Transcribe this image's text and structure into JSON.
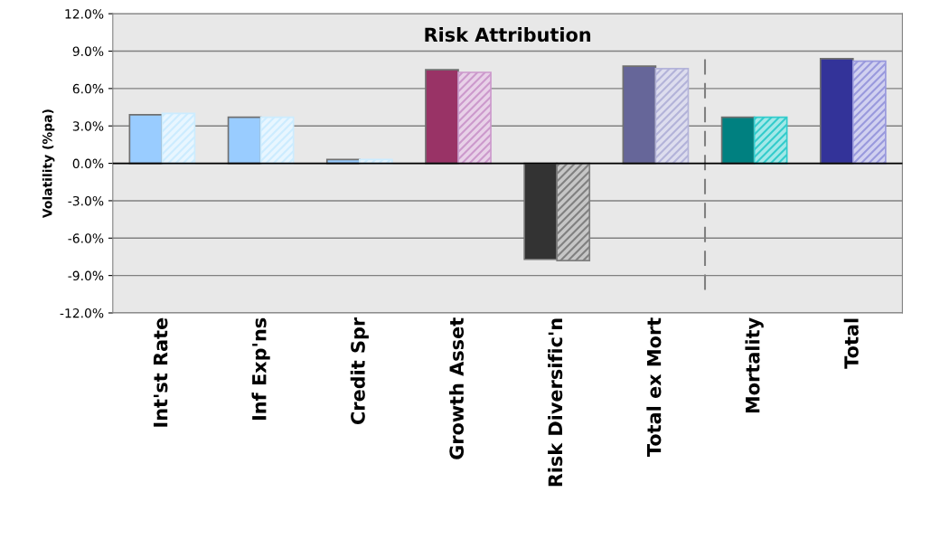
{
  "chart_data": {
    "type": "bar",
    "title": "Risk Attribution",
    "ylabel": "Volatility (%pa)",
    "categories": [
      "Int'st Rate",
      "Inf Exp'ns",
      "Credit Spr",
      "Growth Asset",
      "Risk Diversific'n",
      "Total ex Mort",
      "Mortality",
      "Total"
    ],
    "series": [
      {
        "colors": [
          "#99ccff",
          "#99ccff",
          "#99ccff",
          "#993366",
          "#333333",
          "#666699",
          "#008080",
          "#333399"
        ],
        "values": [
          3.9,
          3.7,
          0.3,
          7.5,
          -7.7,
          7.8,
          3.7,
          8.4
        ]
      },
      {
        "colors": [
          "#ccecff",
          "#ccecff",
          "#ccecff",
          "#cc99cc",
          "#808080",
          "#b3b3d9",
          "#33cccc",
          "#9999dd"
        ],
        "values": [
          4.0,
          3.7,
          0.3,
          7.3,
          -7.8,
          7.6,
          3.7,
          8.2
        ]
      }
    ],
    "ylim": [
      -12,
      12
    ],
    "yticks": [
      {
        "value": -12,
        "label": "-12.0%"
      },
      {
        "value": -9,
        "label": "-9.0%"
      },
      {
        "value": -6,
        "label": "-6.0%"
      },
      {
        "value": -3,
        "label": "-3.0%"
      },
      {
        "value": 0,
        "label": "0.0%"
      },
      {
        "value": 3,
        "label": "3.0%"
      },
      {
        "value": 6,
        "label": "6.0%"
      },
      {
        "value": 9,
        "label": "9.0%"
      },
      {
        "value": 12,
        "label": "12.0%"
      }
    ],
    "grid": "y"
  }
}
